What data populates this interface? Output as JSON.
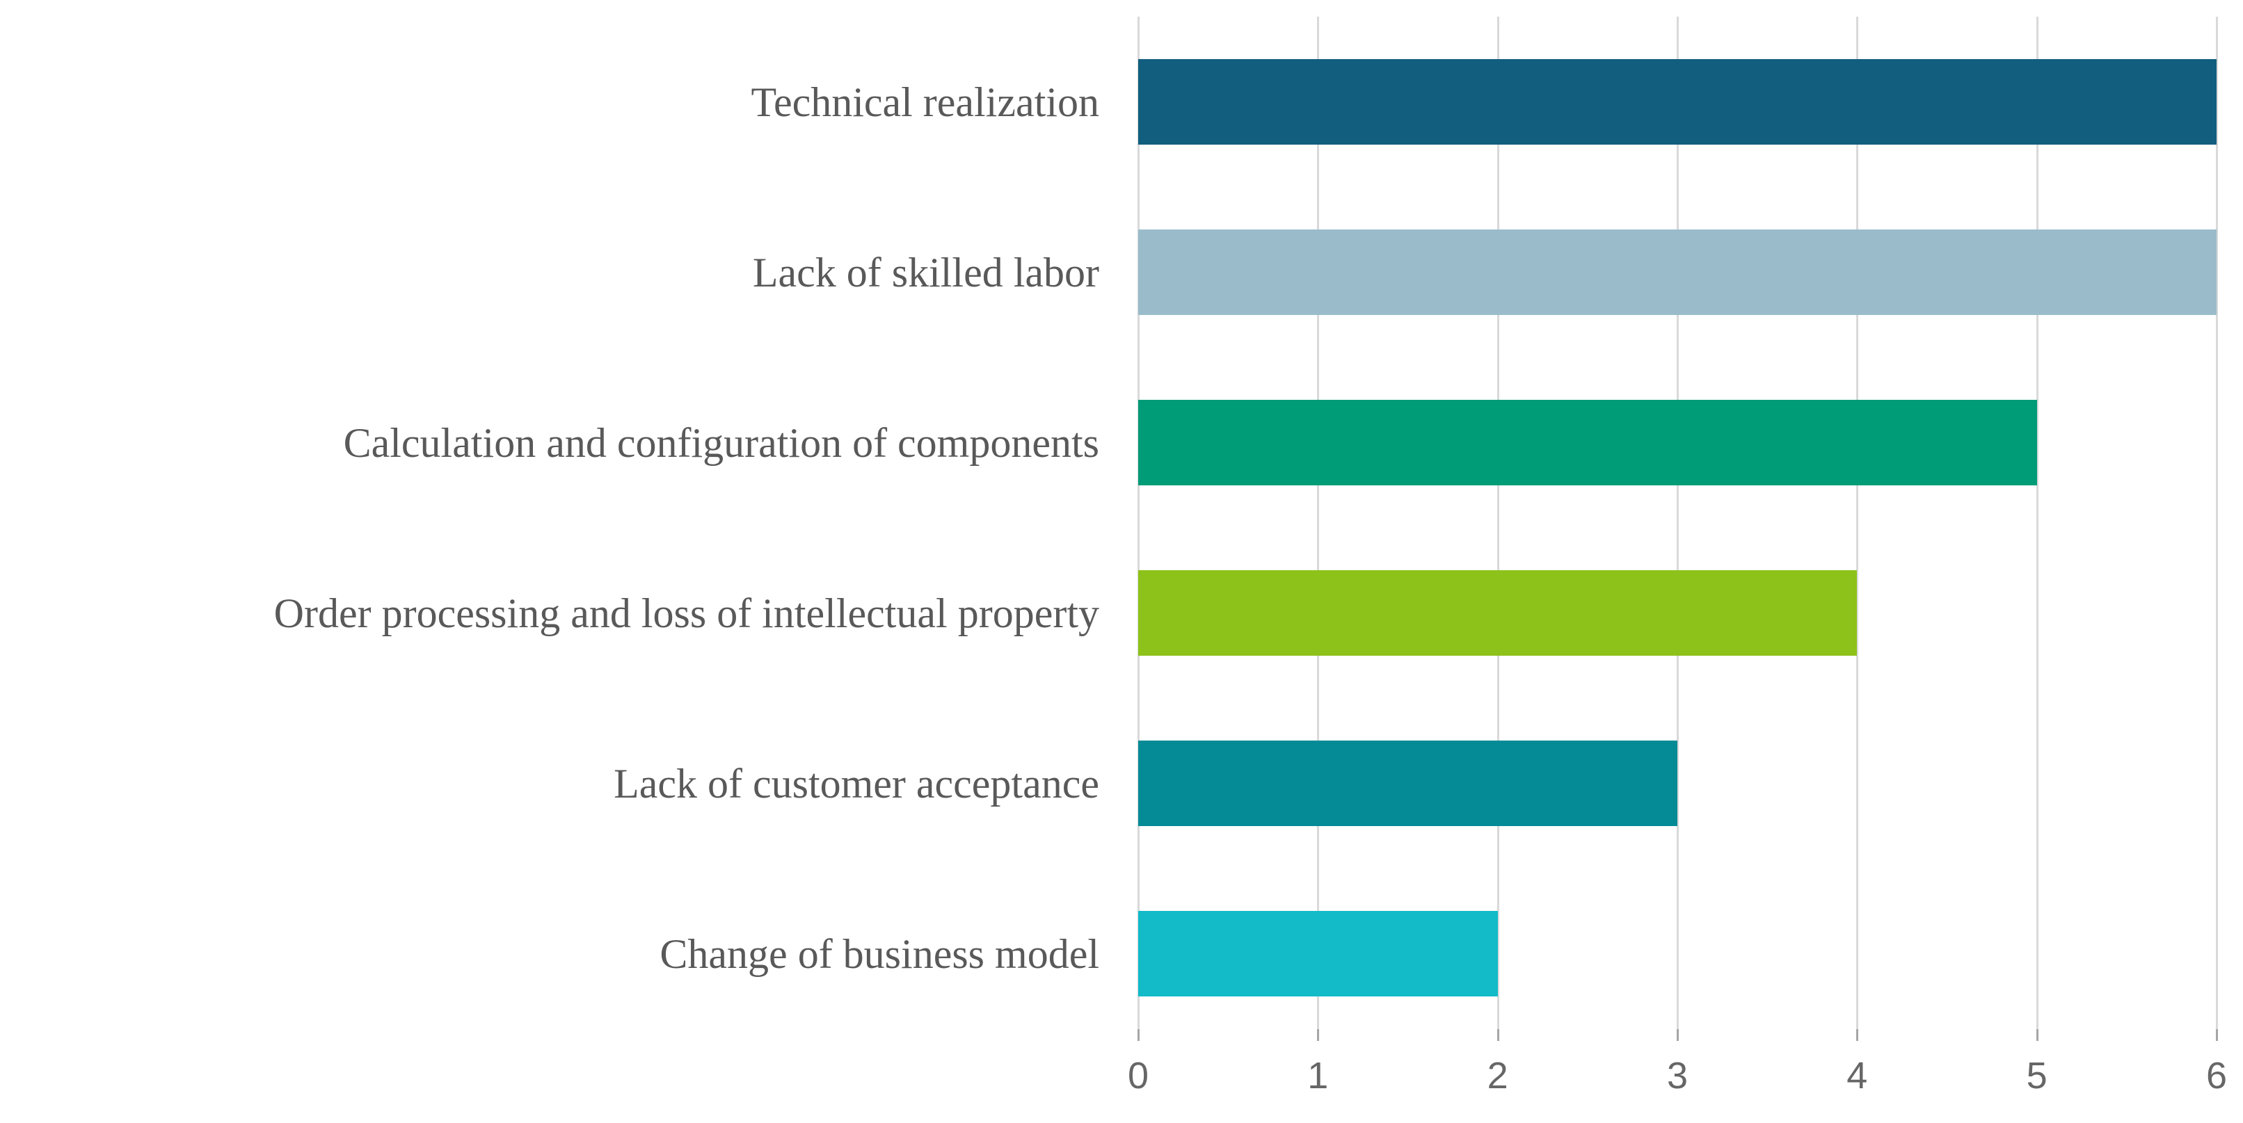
{
  "chart_data": {
    "type": "bar",
    "orientation": "horizontal",
    "title": "",
    "xlabel": "",
    "ylabel": "",
    "legend": "none",
    "grid": "vertical-gridlines-only",
    "categories": [
      "Technical realization",
      "Lack of skilled labor",
      "Calculation and configuration of components",
      "Order processing and loss of intellectual property",
      "Lack of customer acceptance",
      "Change of business model"
    ],
    "values": [
      6,
      6,
      5,
      4,
      3,
      2
    ],
    "bar_colors": [
      "#115E7E",
      "#9ABCCA",
      "#009B77",
      "#8CC219",
      "#058B96",
      "#12BBC7"
    ],
    "xlim": [
      0,
      6
    ],
    "x_ticks": [
      "0",
      "1",
      "2",
      "3",
      "4",
      "5",
      "6"
    ]
  },
  "style": {
    "background": "#FFFFFF",
    "label_text_color": "#595959",
    "tick_text_color": "#666666",
    "gridline_color": "#D9D9D9",
    "tick_mark_color": "#A6A6A6"
  }
}
